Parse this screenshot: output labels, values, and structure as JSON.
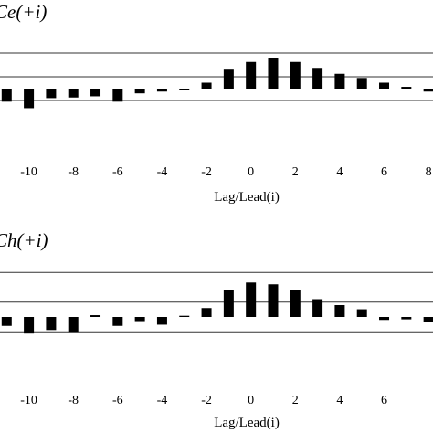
{
  "chart_data": [
    {
      "type": "bar",
      "title": "Ce(+i)",
      "xlabel": "Lag/Lead(i)",
      "ylabel": "",
      "x": [
        -11,
        -10,
        -9,
        -8,
        -7,
        -6,
        -5,
        -4,
        -3,
        -2,
        -1,
        0,
        1,
        2,
        3,
        4,
        5,
        6,
        7,
        8
      ],
      "values": [
        -0.22,
        -0.33,
        -0.16,
        -0.15,
        -0.13,
        -0.22,
        -0.08,
        -0.05,
        -0.03,
        0.1,
        0.32,
        0.45,
        0.52,
        0.45,
        0.35,
        0.25,
        0.18,
        0.1,
        0.03,
        -0.05
      ],
      "xticks": [
        -10,
        -8,
        -6,
        -4,
        -2,
        0,
        2,
        4,
        6,
        8
      ],
      "xtick_labels": [
        "-10",
        "-8",
        "-6",
        "-4",
        "-2",
        "0",
        "2",
        "4",
        "6",
        "8"
      ],
      "ylim": [
        -1,
        1
      ],
      "xlim": [
        -11.3,
        8.2
      ],
      "reference_lines": [
        0.6,
        0.2,
        -0.2
      ],
      "bar_color": "#000000"
    },
    {
      "type": "bar",
      "title": "Ch(+i)",
      "xlabel": "Lag/Lead(i)",
      "ylabel": "",
      "x": [
        -11,
        -10,
        -9,
        -8,
        -7,
        -6,
        -5,
        -4,
        -3,
        -2,
        -1,
        0,
        1,
        2,
        3,
        4,
        5,
        6,
        7,
        8
      ],
      "values": [
        -0.15,
        -0.28,
        -0.22,
        -0.25,
        0.03,
        -0.15,
        -0.07,
        -0.13,
        0.02,
        0.15,
        0.45,
        0.58,
        0.55,
        0.45,
        0.3,
        0.2,
        0.13,
        -0.05,
        -0.04,
        -0.08
      ],
      "xticks": [
        -10,
        -8,
        -6,
        -4,
        -2,
        0,
        2,
        4,
        6
      ],
      "xtick_labels": [
        "-10",
        "-8",
        "-6",
        "-4",
        "-2",
        "0",
        "2",
        "4",
        "6"
      ],
      "ylim": [
        -1,
        1
      ],
      "xlim": [
        -11.3,
        8.2
      ],
      "reference_lines": [
        0.75,
        0.25,
        -0.25
      ],
      "bar_color": "#000000"
    }
  ]
}
